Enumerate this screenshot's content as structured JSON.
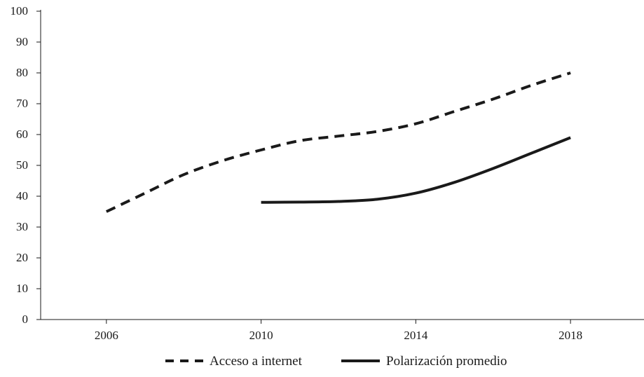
{
  "chart_data": {
    "type": "line",
    "title": "",
    "xlabel": "",
    "ylabel": "",
    "x": [
      2006,
      2007,
      2008,
      2009,
      2010,
      2011,
      2012,
      2013,
      2014,
      2015,
      2016,
      2017,
      2018
    ],
    "x_ticks": [
      "2006",
      "2010",
      "2014",
      "2018"
    ],
    "x_range": [
      2004.3,
      2019.9
    ],
    "ylim": [
      0,
      100
    ],
    "y_ticks": [
      "0",
      "10",
      "20",
      "30",
      "40",
      "50",
      "60",
      "70",
      "80",
      "90",
      "100"
    ],
    "grid": false,
    "legend_position": "bottom-center",
    "series": [
      {
        "name": "Acceso a internet",
        "style": "dashed",
        "color": "#1a1a1a",
        "values": [
          35,
          41,
          47,
          51.5,
          55,
          58,
          59.5,
          61,
          63.5,
          67.5,
          71.5,
          76,
          80
        ]
      },
      {
        "name": "Polarización promedio",
        "style": "solid",
        "color": "#1a1a1a",
        "values": [
          null,
          null,
          null,
          null,
          38,
          38.1,
          38.3,
          39,
          41,
          44.5,
          49,
          54,
          59
        ]
      }
    ]
  }
}
